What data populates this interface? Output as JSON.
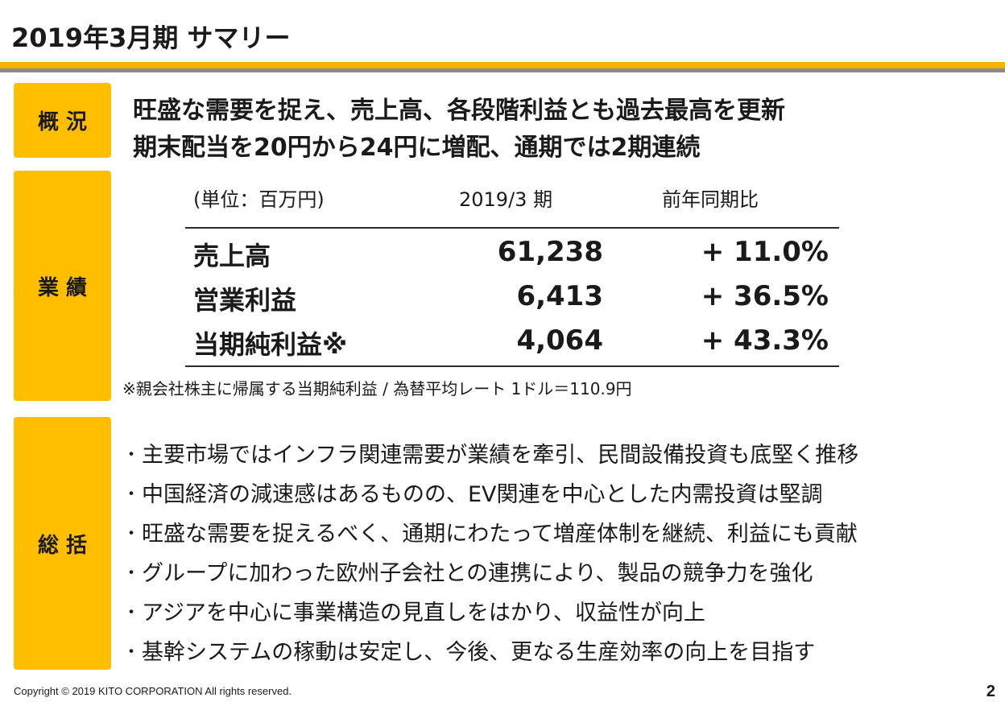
{
  "title": "2019年3月期 サマリー",
  "sections": {
    "overview": {
      "label": "概 況",
      "lines": [
        "旺盛な需要を捉え、売上高、各段階利益とも過去最高を更新",
        "期末配当を20円から24円に増配、通期では2期連続"
      ]
    },
    "results": {
      "label": "業 績",
      "table": {
        "headers": {
          "unit": "(単位：百万円)",
          "period": "2019/3 期",
          "yoy": "前年同期比"
        },
        "rows": [
          {
            "name": "売上高",
            "value": "61,238",
            "change": "+ 11.0%"
          },
          {
            "name": "営業利益",
            "value": "6,413",
            "change": "+ 36.5%"
          },
          {
            "name": "当期純利益※",
            "value": "4,064",
            "change": "+ 43.3%"
          }
        ]
      },
      "footnote": "※親会社株主に帰属する当期純利益 / 為替平均レート 1ドル＝110.9円"
    },
    "summary": {
      "label": "総 括",
      "bullet_glyph": "・",
      "items": [
        "主要市場ではインフラ関連需要が業績を牽引、民間設備投資も底堅く推移",
        "中国経済の減速感はあるものの、EV関連を中心とした内需投資は堅調",
        "旺盛な需要を捉えるべく、通期にわたって増産体制を継続、利益にも貢献",
        "グループに加わった欧州子会社との連携により、製品の競争力を強化",
        "アジアを中心に事業構造の見直しをはかり、収益性が向上",
        "基幹システムの稼動は安定し、今後、更なる生産効率の向上を目指す"
      ]
    }
  },
  "footer": {
    "copyright": "Copyright © 2019 KITO CORPORATION All rights reserved.",
    "page": "2"
  },
  "colors": {
    "accent": "#ffbf00",
    "rule_gold": "#f0b400",
    "rule_gray": "#8c8c8c"
  }
}
